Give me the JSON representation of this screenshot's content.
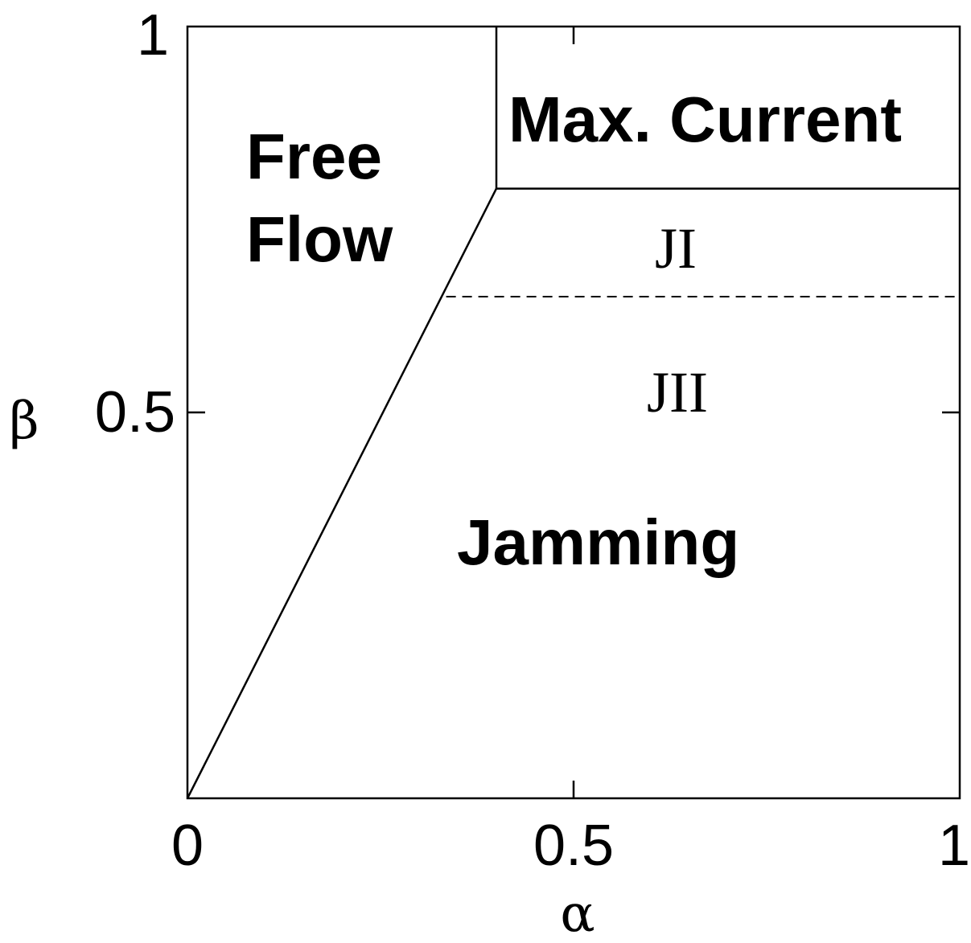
{
  "axes": {
    "x_symbol": "α",
    "y_symbol": "β",
    "x_ticks": [
      {
        "value": 0,
        "label": "0"
      },
      {
        "value": 0.5,
        "label": "0.5"
      },
      {
        "value": 1,
        "label": "1"
      }
    ],
    "y_ticks": [
      {
        "value": 0.5,
        "label": "0.5"
      },
      {
        "value": 1,
        "label": "1"
      }
    ],
    "xlim": [
      0,
      1
    ],
    "ylim": [
      0,
      1
    ]
  },
  "phases": {
    "free_flow_line1": "Free",
    "free_flow_line2": "Flow",
    "max_current": "Max. Current",
    "jamming": "Jamming",
    "j1": "JI",
    "j2": "JII"
  },
  "boundaries": {
    "free_jamming_line": [
      [
        0,
        0
      ],
      [
        0.4,
        0.79
      ]
    ],
    "max_current_vertical": [
      [
        0.4,
        0.79
      ],
      [
        0.4,
        1
      ]
    ],
    "max_current_horizontal": [
      [
        0.4,
        0.79
      ],
      [
        1,
        0.79
      ]
    ],
    "jI_jII_dashed": [
      [
        0.335,
        0.65
      ],
      [
        1,
        0.65
      ]
    ]
  }
}
